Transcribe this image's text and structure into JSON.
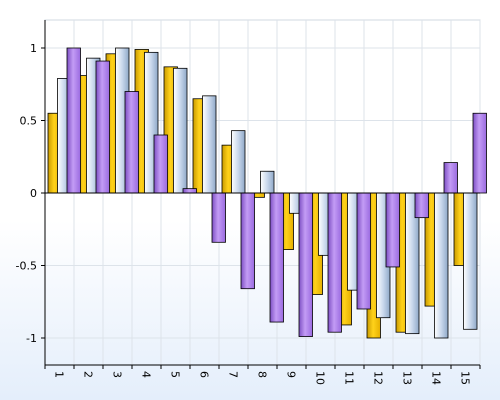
{
  "chart_data": {
    "type": "bar",
    "categories": [
      "1",
      "2",
      "3",
      "4",
      "5",
      "6",
      "7",
      "8",
      "9",
      "10",
      "11",
      "12",
      "13",
      "14",
      "15"
    ],
    "ylim": [
      -1.2,
      1.2
    ],
    "yticks": [
      "1",
      "0.5",
      "0",
      "-0.5",
      "-1"
    ],
    "grid": true,
    "title": "",
    "xlabel": "",
    "ylabel": "",
    "series": [
      {
        "color": "#f2c200",
        "values": [
          0.55,
          0.81,
          0.96,
          0.99,
          0.87,
          0.65,
          0.33,
          -0.03,
          -0.39,
          -0.7,
          -0.91,
          -1.0,
          -0.96,
          -0.78,
          -0.5
        ]
      },
      {
        "color": "#b8cce4",
        "values": [
          0.79,
          0.93,
          1.0,
          0.97,
          0.86,
          0.67,
          0.43,
          0.15,
          -0.14,
          -0.43,
          -0.67,
          -0.86,
          -0.97,
          -1.0,
          -0.94
        ]
      },
      {
        "color": "#a97ee8",
        "values": [
          1.0,
          0.91,
          0.7,
          0.4,
          0.03,
          -0.34,
          -0.66,
          -0.89,
          -0.99,
          -0.96,
          -0.8,
          -0.51,
          -0.17,
          0.21,
          0.55
        ]
      }
    ]
  }
}
